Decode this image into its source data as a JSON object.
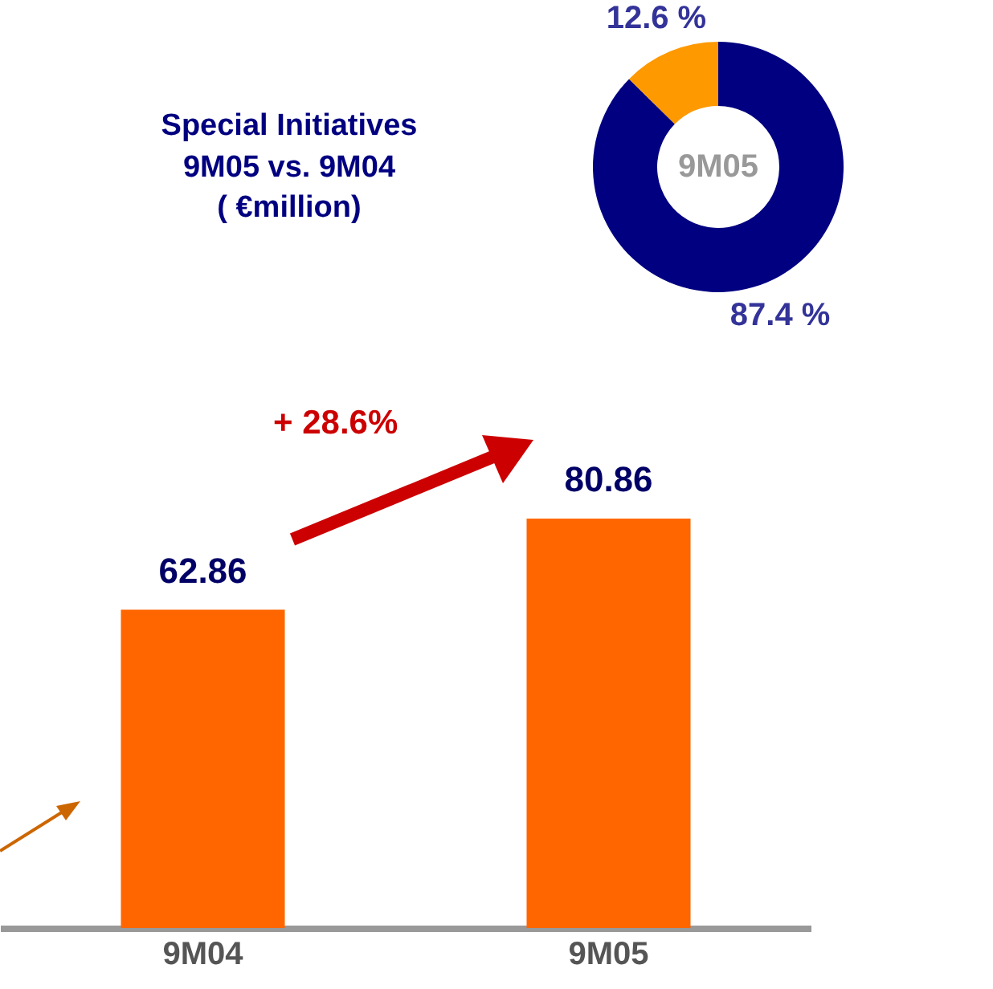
{
  "chart_data": [
    {
      "type": "donut",
      "categories": [
        null,
        null
      ],
      "values": [
        87.4,
        12.6
      ],
      "colors": [
        "#000080",
        "#ff9900"
      ],
      "value_labels": [
        "87.4 %",
        "12.6 %"
      ],
      "annotations": [
        "9M05"
      ]
    },
    {
      "type": "bar",
      "title": "Special Initiatives\n9M05 vs. 9M04\n( €million)",
      "categories": [
        "9M04",
        "9M05"
      ],
      "values": [
        62.86,
        80.86
      ],
      "color": "#ff6600",
      "data_labels": true,
      "annotations": [
        "+ 28.6%"
      ]
    }
  ]
}
